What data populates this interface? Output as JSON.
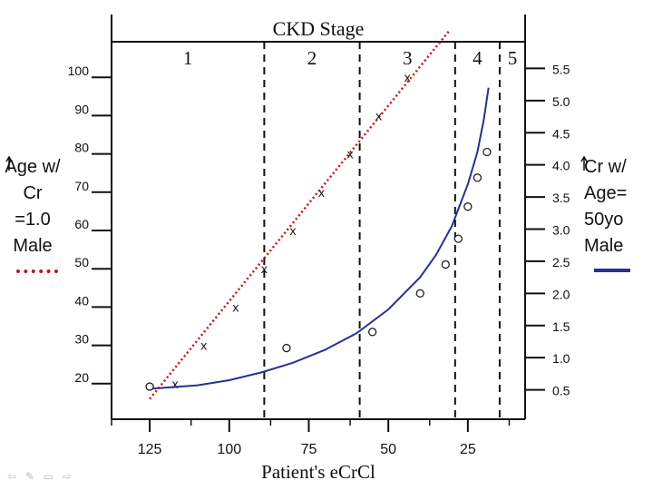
{
  "chart_data": {
    "type": "scatter",
    "title": "CKD Stage",
    "xlabel": "Patient's eCrCl",
    "x_ticks": [
      125,
      100,
      75,
      50,
      25
    ],
    "x_range": [
      137,
      7
    ],
    "left_axis": {
      "label": "Age w/ Cr =1.0 Male",
      "ticks": [
        20,
        30,
        40,
        50,
        60,
        70,
        80,
        90,
        100
      ],
      "range": [
        10,
        110
      ]
    },
    "right_axis": {
      "label": "Cr w/ Age= 50yo Male",
      "ticks": [
        "0.5",
        "1.0",
        "1.5",
        "2.0",
        "2.5",
        "3.0",
        "3.5",
        "4.0",
        "4.5",
        "5.0",
        "5.5"
      ],
      "range": [
        0.0,
        6.0
      ]
    },
    "stages": [
      {
        "label": "1",
        "from": 137,
        "to": 89
      },
      {
        "label": "2",
        "from": 89,
        "to": 59
      },
      {
        "label": "3",
        "from": 59,
        "to": 29
      },
      {
        "label": "4",
        "from": 29,
        "to": 15
      },
      {
        "label": "5",
        "from": 15,
        "to": 7
      }
    ],
    "stage_boundaries": [
      89,
      59,
      29,
      15
    ],
    "series": [
      {
        "name": "Age w/ Cr =1.0 Male",
        "marker": "x",
        "color": "#cc1111",
        "line": "dotted",
        "points": [
          [
            117,
            20
          ],
          [
            108,
            30
          ],
          [
            98,
            40
          ],
          [
            89,
            50
          ],
          [
            80,
            60
          ],
          [
            71,
            70
          ],
          [
            62,
            80
          ],
          [
            53,
            90
          ],
          [
            44,
            100
          ]
        ],
        "fit_line": [
          [
            125,
            16
          ],
          [
            31,
            112
          ]
        ]
      },
      {
        "name": "Cr w/ Age= 50yo Male",
        "marker": "o",
        "color": "#2b2f8f",
        "line": "solid",
        "points": [
          [
            125,
            0.55
          ],
          [
            82,
            1.15
          ],
          [
            55,
            1.4
          ],
          [
            40,
            2.0
          ],
          [
            32,
            2.45
          ],
          [
            28,
            2.85
          ],
          [
            25,
            3.35
          ],
          [
            22,
            3.8
          ],
          [
            19,
            4.2
          ]
        ],
        "fit_curve": [
          [
            124,
            0.52
          ],
          [
            110,
            0.57
          ],
          [
            100,
            0.65
          ],
          [
            90,
            0.77
          ],
          [
            80,
            0.92
          ],
          [
            70,
            1.12
          ],
          [
            60,
            1.38
          ],
          [
            50,
            1.75
          ],
          [
            40,
            2.25
          ],
          [
            35,
            2.6
          ],
          [
            30,
            3.05
          ],
          [
            25,
            3.7
          ],
          [
            22,
            4.2
          ],
          [
            20,
            4.7
          ],
          [
            18.5,
            5.2
          ]
        ]
      }
    ]
  },
  "nav_icons": [
    "left-arrow-icon",
    "pen-icon",
    "menu-icon",
    "right-arrow-icon"
  ]
}
